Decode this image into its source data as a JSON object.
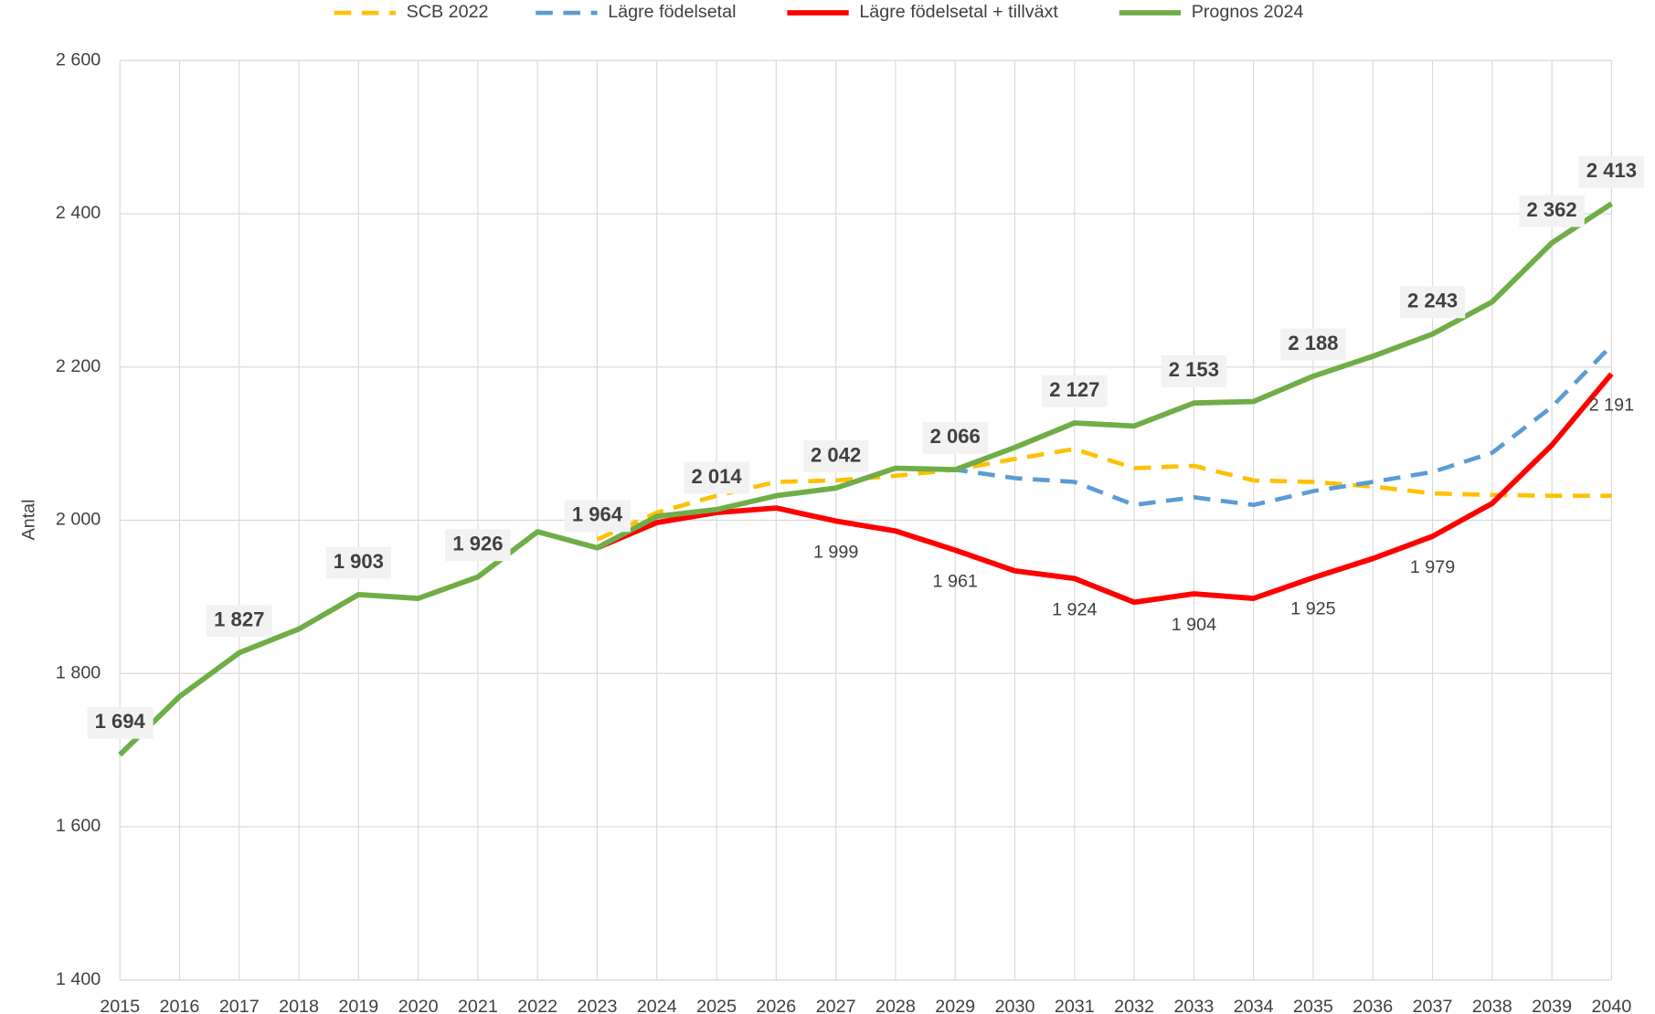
{
  "chart_data": {
    "type": "line",
    "y_label": "Antal",
    "x": [
      2015,
      2016,
      2017,
      2018,
      2019,
      2020,
      2021,
      2022,
      2023,
      2024,
      2025,
      2026,
      2027,
      2028,
      2029,
      2030,
      2031,
      2032,
      2033,
      2034,
      2035,
      2036,
      2037,
      2038,
      2039,
      2040
    ],
    "xlim": [
      2015,
      2040
    ],
    "xticks": [
      2015,
      2016,
      2017,
      2018,
      2019,
      2020,
      2021,
      2022,
      2023,
      2024,
      2025,
      2026,
      2027,
      2028,
      2029,
      2030,
      2031,
      2032,
      2033,
      2034,
      2035,
      2036,
      2037,
      2038,
      2039,
      2040
    ],
    "ylim": [
      1400,
      2600
    ],
    "yticks": [
      {
        "value": 1400,
        "label": "1 400"
      },
      {
        "value": 1600,
        "label": "1 600"
      },
      {
        "value": 1800,
        "label": "1 800"
      },
      {
        "value": 2000,
        "label": "2 000"
      },
      {
        "value": 2200,
        "label": "2 200"
      },
      {
        "value": 2400,
        "label": "2 400"
      },
      {
        "value": 2600,
        "label": "2 600"
      }
    ],
    "grid": true,
    "legend": "top",
    "series": [
      {
        "name": "SCB 2022",
        "color": "#FFC000",
        "dashed": true,
        "values": [
          null,
          null,
          null,
          null,
          null,
          null,
          null,
          null,
          1975,
          2010,
          2032,
          2050,
          2052,
          2058,
          2066,
          2080,
          2093,
          2068,
          2071,
          2052,
          2050,
          2044,
          2035,
          2033,
          2032,
          2032
        ]
      },
      {
        "name": "Lägre födelsetal",
        "color": "#5B9BD5",
        "dashed": true,
        "values": [
          null,
          null,
          null,
          null,
          null,
          null,
          null,
          null,
          null,
          null,
          null,
          null,
          null,
          2068,
          2066,
          2055,
          2050,
          2020,
          2030,
          2020,
          2038,
          2050,
          2063,
          2088,
          2148,
          2228
        ]
      },
      {
        "name": "Lägre födelsetal + tillväxt",
        "color": "#FF0000",
        "dashed": false,
        "values": [
          null,
          null,
          null,
          null,
          null,
          null,
          null,
          null,
          1964,
          1997,
          2010,
          2016,
          1999,
          1986,
          1961,
          1934,
          1924,
          1893,
          1904,
          1898,
          1925,
          1950,
          1979,
          2022,
          2098,
          2191
        ],
        "value_labels": [
          null,
          null,
          null,
          null,
          null,
          null,
          null,
          null,
          null,
          null,
          null,
          null,
          "1 999",
          null,
          "1 961",
          null,
          "1 924",
          null,
          "1 904",
          null,
          "1 925",
          null,
          "1 979",
          null,
          null,
          "2 191"
        ]
      },
      {
        "name": "Prognos 2024",
        "color": "#70AD47",
        "dashed": false,
        "values": [
          1694,
          1770,
          1827,
          1858,
          1903,
          1898,
          1926,
          1985,
          1964,
          2005,
          2014,
          2032,
          2042,
          2068,
          2066,
          2095,
          2127,
          2123,
          2153,
          2155,
          2188,
          2214,
          2243,
          2285,
          2362,
          2413
        ],
        "value_labels": [
          "1 694",
          null,
          "1 827",
          null,
          "1 903",
          null,
          "1 926",
          null,
          "1 964",
          null,
          "2 014",
          null,
          "2 042",
          null,
          "2 066",
          null,
          "2 127",
          null,
          "2 153",
          null,
          "2 188",
          null,
          "2 243",
          null,
          "2 362",
          "2 413"
        ]
      }
    ]
  }
}
